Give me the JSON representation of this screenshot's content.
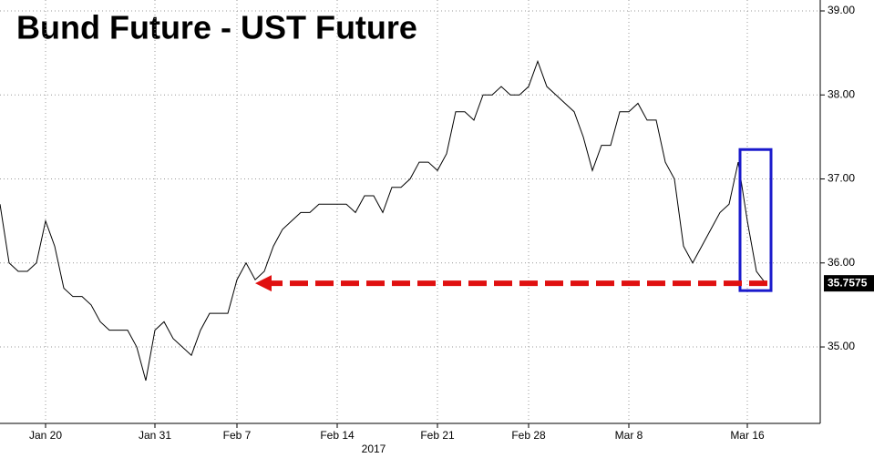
{
  "chart_data": {
    "type": "line",
    "title": "Bund Future - UST Future",
    "year_label": "2017",
    "categories": [
      null,
      null,
      null,
      null,
      null,
      "Jan 20",
      null,
      null,
      null,
      null,
      null,
      null,
      null,
      null,
      null,
      null,
      null,
      "Jan 31",
      null,
      null,
      null,
      null,
      null,
      null,
      null,
      null,
      "Feb 7",
      null,
      null,
      null,
      null,
      null,
      null,
      null,
      null,
      null,
      null,
      "Feb 14",
      null,
      null,
      null,
      null,
      null,
      null,
      null,
      null,
      null,
      null,
      "Feb 21",
      null,
      null,
      null,
      null,
      null,
      null,
      null,
      null,
      null,
      "Feb 28",
      null,
      null,
      null,
      null,
      null,
      null,
      null,
      null,
      null,
      null,
      "Mar 8",
      null,
      null,
      null,
      null,
      null,
      null,
      null,
      null,
      null,
      null,
      null,
      null,
      "Mar 16",
      null,
      null
    ],
    "values": [
      36.7,
      36.0,
      35.9,
      35.9,
      36.0,
      36.5,
      36.2,
      35.7,
      35.6,
      35.6,
      35.5,
      35.3,
      35.2,
      35.2,
      35.2,
      35.0,
      34.6,
      35.2,
      35.3,
      35.1,
      35.0,
      34.9,
      35.2,
      35.4,
      35.4,
      35.4,
      35.8,
      36.0,
      35.8,
      35.9,
      36.2,
      36.4,
      36.5,
      36.6,
      36.6,
      36.7,
      36.7,
      36.7,
      36.7,
      36.6,
      36.8,
      36.8,
      36.6,
      36.9,
      36.9,
      37.0,
      37.2,
      37.2,
      37.1,
      37.3,
      37.8,
      37.8,
      37.7,
      38.0,
      38.0,
      38.1,
      38.0,
      38.0,
      38.1,
      38.4,
      38.1,
      38.0,
      37.9,
      37.8,
      37.5,
      37.1,
      37.4,
      37.4,
      37.8,
      37.8,
      37.9,
      37.7,
      37.7,
      37.2,
      37.0,
      36.2,
      36.0,
      36.2,
      36.4,
      36.6,
      36.7,
      37.2,
      36.5,
      35.9,
      35.7575
    ],
    "last_value_label": "35.7575",
    "color": "#000000",
    "ylim": [
      34.09,
      39.13
    ],
    "yticks": [
      {
        "value": 35,
        "label": "35.00"
      },
      {
        "value": 36,
        "label": "36.00"
      },
      {
        "value": 37,
        "label": "37.00"
      },
      {
        "value": 38,
        "label": "38.00"
      },
      {
        "value": 39,
        "label": "39.00"
      }
    ],
    "grid": true
  }
}
